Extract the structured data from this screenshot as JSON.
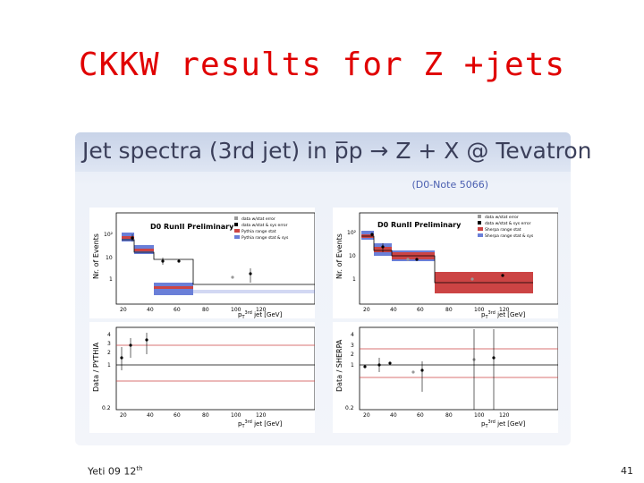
{
  "slide": {
    "title": "CKKW results for Z +jets",
    "footer": {
      "text": "Yeti 09 12",
      "sup": "th"
    },
    "page_number": "41"
  },
  "panel": {
    "title": "Jet spectra (3rd jet) in p̅p → Z + X @ Tevatron",
    "note": "(D0-Note 5066)"
  },
  "plots": {
    "left": {
      "top": {
        "banner": "D0 RunII Preliminary",
        "ylabel": "Nr. of Events",
        "legend": [
          "data w/stat error",
          "data w/stat & sys error",
          "Pythia range stat",
          "Pythia range stat & sys"
        ],
        "xlabel_main": "p",
        "xlabel_sub": "T",
        "xlabel_sup": "3rd",
        "xlabel_rest": " jet [GeV]",
        "yticks": [
          "10²",
          "10",
          "1"
        ],
        "xticks": [
          "20",
          "40",
          "60",
          "80",
          "100",
          "120"
        ]
      },
      "bottom": {
        "ylabel": "Data / PYTHIA",
        "yticks": [
          "4",
          "3",
          "2",
          "1",
          "0.2"
        ],
        "xticks": [
          "20",
          "40",
          "60",
          "80",
          "100",
          "120"
        ],
        "xlabel_main": "p",
        "xlabel_sub": "T",
        "xlabel_sup": "3rd",
        "xlabel_rest": " jet [GeV]"
      }
    },
    "right": {
      "top": {
        "banner": "D0 RunII Preliminary",
        "ylabel": "Nr. of Events",
        "legend": [
          "data w/stat error",
          "data w/stat & sys error",
          "Sherpa range stat",
          "Sherpa range stat & sys"
        ],
        "xlabel_main": "p",
        "xlabel_sub": "T",
        "xlabel_sup": "3rd",
        "xlabel_rest": " jet [GeV]",
        "yticks": [
          "10²",
          "10",
          "1"
        ],
        "xticks": [
          "20",
          "40",
          "60",
          "80",
          "100",
          "120"
        ]
      },
      "bottom": {
        "ylabel": "Data / SHERPA",
        "yticks": [
          "4",
          "3",
          "2",
          "1",
          "0.2"
        ],
        "xticks": [
          "20",
          "40",
          "60",
          "80",
          "100",
          "120"
        ],
        "xlabel_main": "p",
        "xlabel_sub": "T",
        "xlabel_sup": "3rd",
        "xlabel_rest": " jet [GeV]"
      }
    }
  },
  "colors": {
    "title": "#e00000",
    "pythia_band": "#6a7fd8",
    "sherpa_band": "#cc4444",
    "data_grey": "#999999",
    "data_black": "#000000"
  }
}
